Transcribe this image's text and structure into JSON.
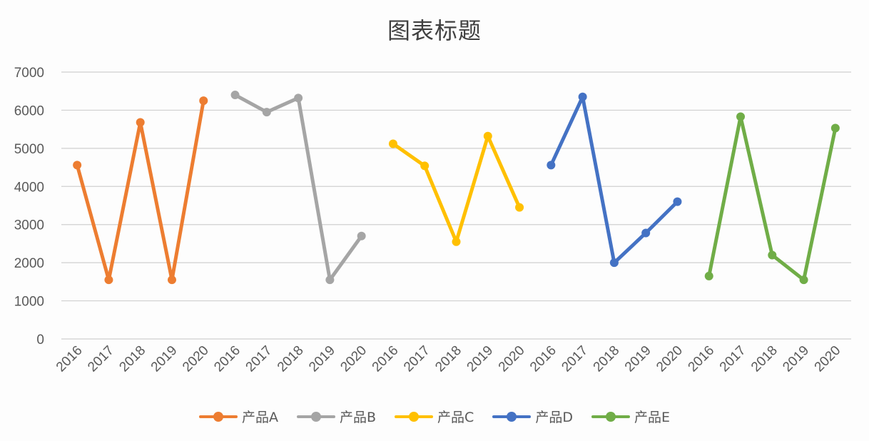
{
  "chart_data": {
    "type": "line",
    "title": "图表标题",
    "xlabel": "",
    "ylabel": "",
    "ylim": [
      0,
      7000
    ],
    "yticks": [
      0,
      1000,
      2000,
      3000,
      4000,
      5000,
      6000,
      7000
    ],
    "grid": true,
    "legend_position": "bottom",
    "categories": [
      "2016",
      "2017",
      "2018",
      "2019",
      "2020",
      "2016",
      "2017",
      "2018",
      "2019",
      "2020",
      "2016",
      "2017",
      "2018",
      "2019",
      "2020",
      "2016",
      "2017",
      "2018",
      "2019",
      "2020",
      "2016",
      "2017",
      "2018",
      "2019",
      "2020"
    ],
    "series": [
      {
        "name": "产品A",
        "color": "#ED7D31",
        "start_index": 0,
        "values": [
          4560,
          1550,
          5680,
          1550,
          6250
        ]
      },
      {
        "name": "产品B",
        "color": "#A5A5A5",
        "start_index": 5,
        "values": [
          6400,
          5950,
          6320,
          1550,
          2700
        ]
      },
      {
        "name": "产品C",
        "color": "#FFC000",
        "start_index": 10,
        "values": [
          5120,
          4540,
          2550,
          5320,
          3450
        ]
      },
      {
        "name": "产品D",
        "color": "#4472C4",
        "start_index": 15,
        "values": [
          4560,
          6350,
          2000,
          2780,
          3600
        ]
      },
      {
        "name": "产品E",
        "color": "#70AD47",
        "start_index": 20,
        "values": [
          1650,
          5830,
          2200,
          1550,
          5530
        ]
      }
    ]
  }
}
